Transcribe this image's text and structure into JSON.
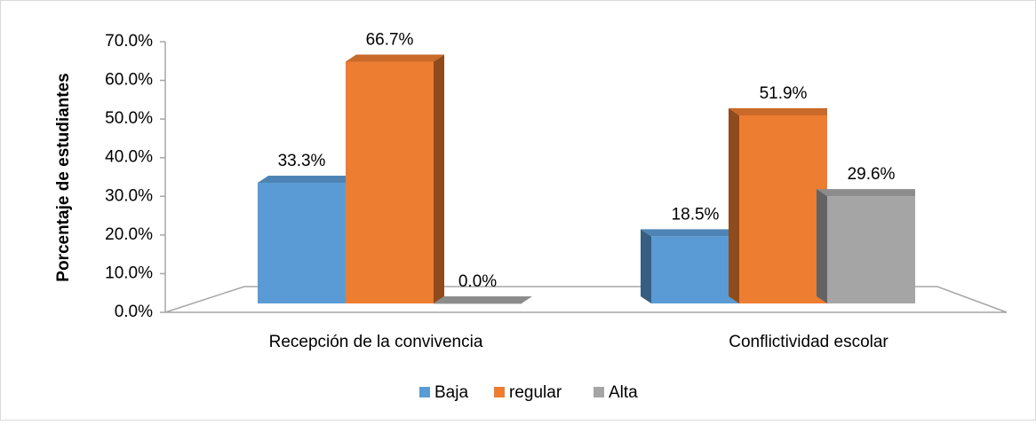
{
  "chart_data": {
    "type": "bar3d",
    "y_label": "Porcentaje de estudiantes",
    "categories": [
      "Recepción de la convivencia",
      "Conflictividad escolar"
    ],
    "series": [
      {
        "name": "Baja",
        "color": "#5b9bd5",
        "values": [
          33.3,
          18.5
        ],
        "value_labels": [
          "33.3%",
          "18.5%"
        ]
      },
      {
        "name": "regular",
        "color": "#ed7d31",
        "values": [
          66.7,
          51.9
        ],
        "value_labels": [
          "66.7%",
          "51.9%"
        ]
      },
      {
        "name": "Alta",
        "color": "#a5a5a5",
        "values": [
          0.0,
          29.6
        ],
        "value_labels": [
          "0.0%",
          "29.6%"
        ]
      }
    ],
    "ylim": [
      0,
      70
    ],
    "yticks": [
      {
        "value": 0,
        "label": "0.0%"
      },
      {
        "value": 10,
        "label": "10.0%"
      },
      {
        "value": 20,
        "label": "20.0%"
      },
      {
        "value": 30,
        "label": "30.0%"
      },
      {
        "value": 40,
        "label": "40.0%"
      },
      {
        "value": 50,
        "label": "50.0%"
      },
      {
        "value": 60,
        "label": "60.0%"
      },
      {
        "value": 70,
        "label": "70.0%"
      }
    ],
    "legend": "bottom"
  }
}
